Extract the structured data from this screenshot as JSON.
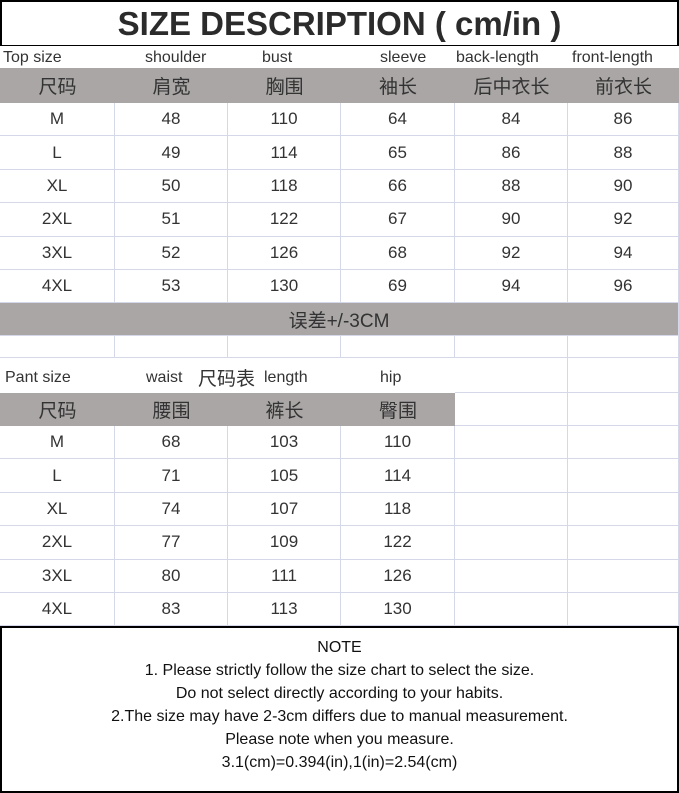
{
  "title": "SIZE DESCRIPTION ( cm/in )",
  "top": {
    "labels": [
      "Top size",
      "shoulder",
      "bust",
      "sleeve",
      "back-length",
      "front-length"
    ],
    "headers": [
      "尺码",
      "肩宽",
      "胸围",
      "袖长",
      "后中衣长",
      "前衣长"
    ],
    "rows": [
      [
        "M",
        "48",
        "110",
        "64",
        "84",
        "86"
      ],
      [
        "L",
        "49",
        "114",
        "65",
        "86",
        "88"
      ],
      [
        "XL",
        "50",
        "118",
        "66",
        "88",
        "90"
      ],
      [
        "2XL",
        "51",
        "122",
        "67",
        "90",
        "92"
      ],
      [
        "3XL",
        "52",
        "126",
        "68",
        "92",
        "94"
      ],
      [
        "4XL",
        "53",
        "130",
        "69",
        "94",
        "96"
      ]
    ],
    "tolerance": "误差+/-3CM"
  },
  "pant": {
    "labels": [
      "Pant size",
      "waist",
      "尺码表",
      "length",
      "hip"
    ],
    "headers": [
      "尺码",
      "腰围",
      "裤长",
      "臀围"
    ],
    "rows": [
      [
        "M",
        "68",
        "103",
        "110"
      ],
      [
        "L",
        "71",
        "105",
        "114"
      ],
      [
        "XL",
        "74",
        "107",
        "118"
      ],
      [
        "2XL",
        "77",
        "109",
        "122"
      ],
      [
        "3XL",
        "80",
        "111",
        "126"
      ],
      [
        "4XL",
        "83",
        "113",
        "130"
      ]
    ]
  },
  "note": {
    "heading": "NOTE",
    "lines": [
      "1. Please strictly follow the size chart to select the size.",
      "Do not select directly according to your habits.",
      "2.The size may have 2-3cm differs due to manual measurement.",
      "Please note when you measure.",
      "3.1(cm)=0.394(in),1(in)=2.54(cm)"
    ]
  },
  "colors": {
    "header_gray": "#a9a6a5",
    "grid": "#d4d8e8"
  }
}
